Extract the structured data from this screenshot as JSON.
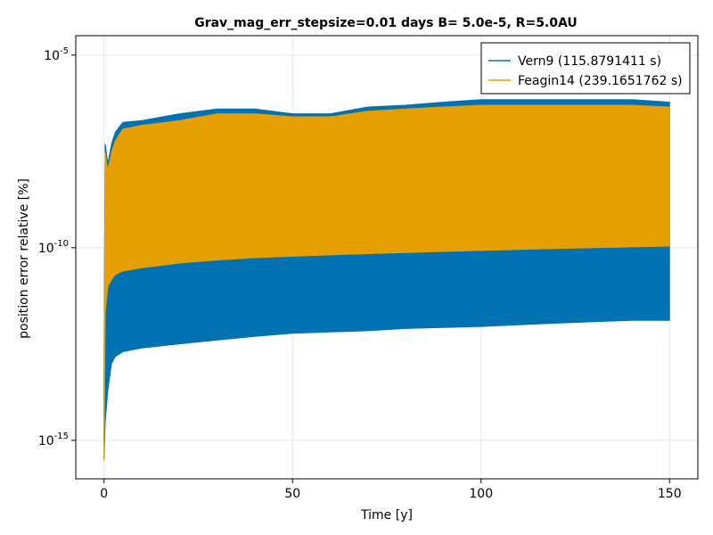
{
  "chart_data": {
    "type": "area",
    "title": "Grav_mag_err_stepsize=0.01 days B= 5.0e-5, R=5.0AU",
    "xlabel": "Time [y]",
    "ylabel": "position error relative [%]",
    "x_scale": "linear",
    "y_scale": "log10",
    "xlim": [
      -7.5,
      157.5
    ],
    "ylim": [
      1e-16,
      3.2e-05
    ],
    "x_ticks": [
      0,
      50,
      100,
      150
    ],
    "x_tick_labels": [
      "0",
      "50",
      "100",
      "150"
    ],
    "y_ticks": [
      1e-15,
      1e-10,
      1e-05
    ],
    "y_tick_labels": [
      {
        "base": "10",
        "exp": "-15"
      },
      {
        "base": "10",
        "exp": "-10"
      },
      {
        "base": "10",
        "exp": "-5"
      }
    ],
    "grid": true,
    "legend_position": "top-right",
    "series": [
      {
        "name": "Vern9 (115.8791411 s)",
        "color": "#0072b2",
        "x": [
          0,
          0.3,
          1,
          2,
          3,
          5,
          10,
          20,
          30,
          40,
          50,
          60,
          70,
          80,
          90,
          100,
          110,
          120,
          130,
          140,
          150
        ],
        "lower": [
          3e-16,
          3e-15,
          2e-14,
          1e-13,
          1.5e-13,
          2e-13,
          2.5e-13,
          3.2e-13,
          4e-13,
          5e-13,
          6e-13,
          6.5e-13,
          7e-13,
          8e-13,
          8.5e-13,
          9e-13,
          1e-12,
          1.1e-12,
          1.2e-12,
          1.3e-12,
          1.3e-12
        ],
        "upper": [
          1e-13,
          5e-08,
          1.5e-08,
          5e-08,
          1e-07,
          1.8e-07,
          2e-07,
          3e-07,
          4e-07,
          4e-07,
          3e-07,
          3e-07,
          4.5e-07,
          5e-07,
          6e-07,
          7e-07,
          7e-07,
          7e-07,
          7e-07,
          7e-07,
          6e-07
        ]
      },
      {
        "name": "Feagin14 (239.1651762 s)",
        "color": "#e69f00",
        "x": [
          0,
          0.3,
          1,
          2,
          3,
          5,
          10,
          20,
          30,
          40,
          50,
          60,
          70,
          80,
          90,
          100,
          110,
          120,
          130,
          140,
          150
        ],
        "lower": [
          3e-16,
          2e-12,
          1e-11,
          1.5e-11,
          2e-11,
          2.5e-11,
          3e-11,
          4e-11,
          4.8e-11,
          5.5e-11,
          6e-11,
          6.5e-11,
          7e-11,
          7.5e-11,
          8e-11,
          8.5e-11,
          9e-11,
          9.5e-11,
          1e-10,
          1.05e-10,
          1.1e-10
        ],
        "upper": [
          1e-13,
          3e-08,
          1e-08,
          3e-08,
          6e-08,
          1.2e-07,
          1.5e-07,
          2e-07,
          3e-07,
          3e-07,
          2.5e-07,
          2.5e-07,
          3.5e-07,
          4e-07,
          4.5e-07,
          5e-07,
          5e-07,
          5e-07,
          5e-07,
          5e-07,
          4.5e-07
        ]
      }
    ]
  }
}
